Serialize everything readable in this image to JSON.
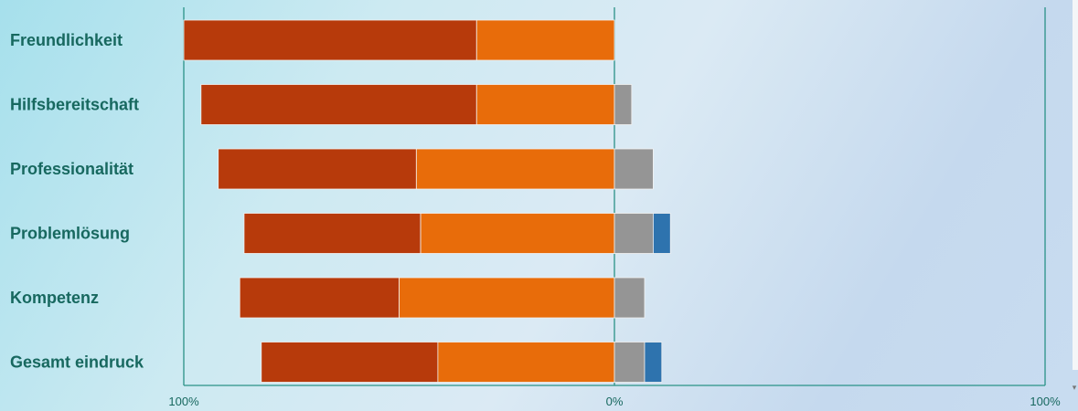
{
  "chart_data": {
    "type": "bar",
    "orientation": "horizontal",
    "stacked": "diverging",
    "categories": [
      "Freundlichkeit",
      "Hilfsbereitschaft",
      "Professionalität",
      "Problemlösung",
      "Kompetenz",
      "Gesamt eindruck"
    ],
    "series": [
      {
        "side": "left",
        "color": "#b73a0b",
        "values": [
          68,
          64,
          46,
          41,
          37,
          41
        ]
      },
      {
        "side": "left",
        "color": "#e86c0a",
        "values": [
          32,
          32,
          46,
          45,
          50,
          41
        ]
      },
      {
        "side": "right",
        "color": "#959595",
        "values": [
          0,
          4,
          9,
          9,
          7,
          7
        ]
      },
      {
        "side": "right",
        "color": "#2e73ae",
        "values": [
          0,
          0,
          0,
          4,
          0,
          4
        ]
      }
    ],
    "xlim": [
      -100,
      100
    ],
    "ticks": [
      {
        "value": -100,
        "label": "100%"
      },
      {
        "value": 0,
        "label": "0%"
      },
      {
        "value": 100,
        "label": "100%"
      }
    ],
    "grid": "vertical lines at ticks",
    "legend": "none",
    "axis_color": "#2a9287"
  }
}
